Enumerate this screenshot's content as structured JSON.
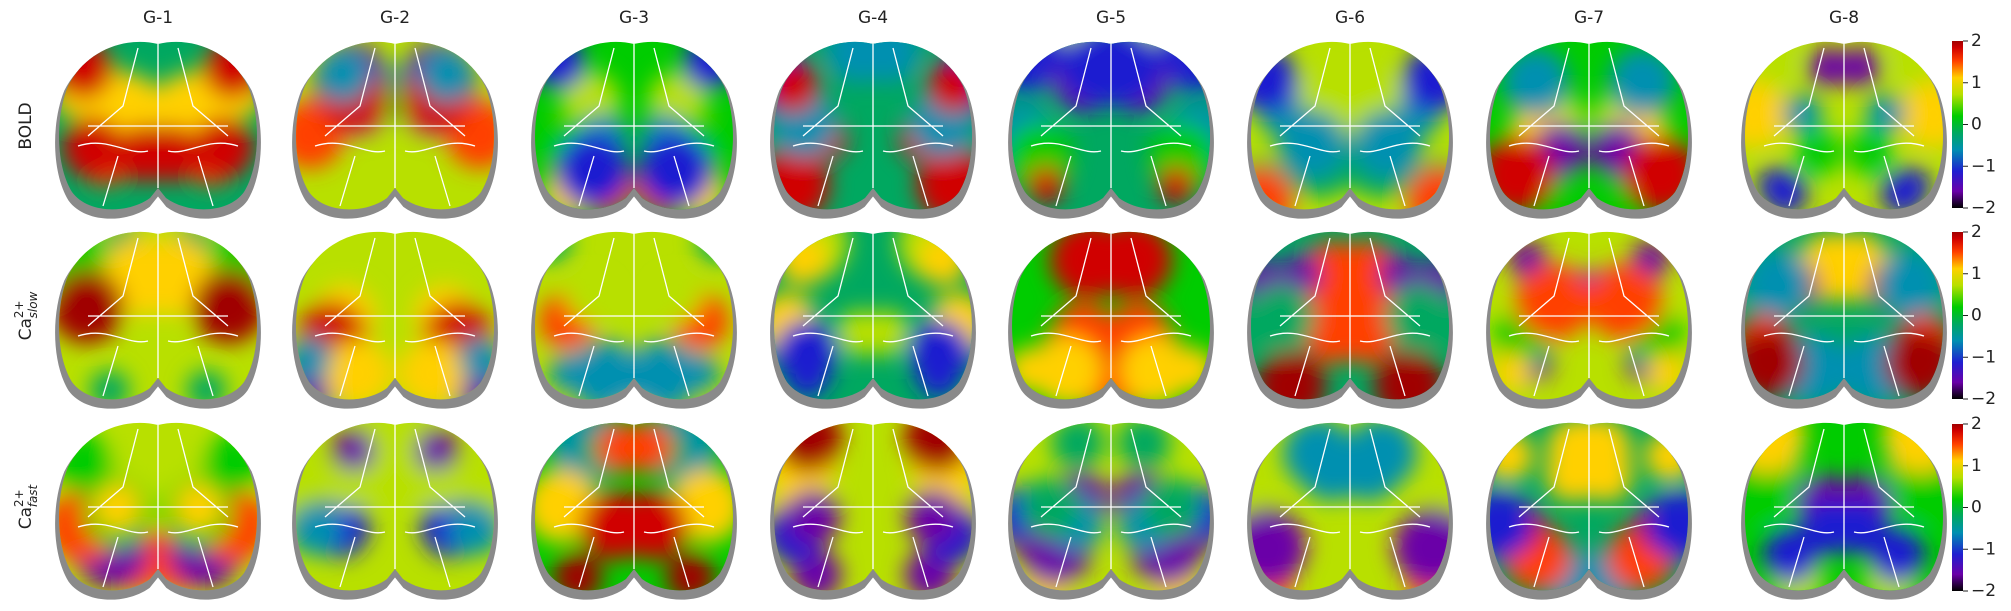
{
  "columns": [
    "G-1",
    "G-2",
    "G-3",
    "G-4",
    "G-5",
    "G-6",
    "G-7",
    "G-8"
  ],
  "rows": [
    {
      "base": "BOLD"
    },
    {
      "base": "Ca",
      "sup": "2+",
      "sub": "slow"
    },
    {
      "base": "Ca",
      "sup": "2+",
      "sub": "fast"
    }
  ],
  "colorbar": {
    "lim": [
      -2,
      2
    ],
    "ticks": [
      {
        "value": -2,
        "label": "−2"
      },
      {
        "value": -1,
        "label": "−1"
      },
      0,
      1,
      2
    ]
  }
}
